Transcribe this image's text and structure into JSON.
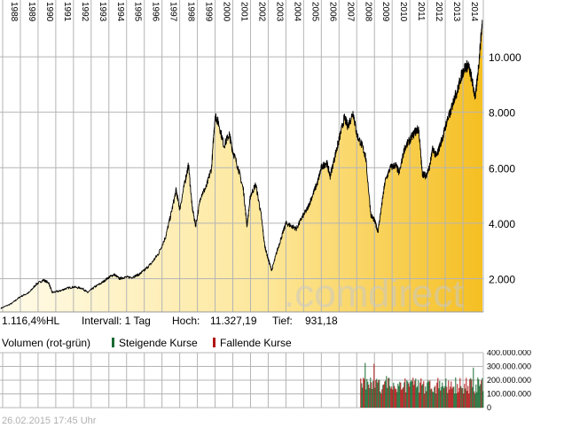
{
  "chart_data": [
    {
      "type": "area",
      "x_years": [
        "1988",
        "1989",
        "1990",
        "1991",
        "1992",
        "1993",
        "1994",
        "1995",
        "1996",
        "1997",
        "1998",
        "1999",
        "2000",
        "2001",
        "2002",
        "2003",
        "2004",
        "2005",
        "2006",
        "2007",
        "2008",
        "2009",
        "2010",
        "2011",
        "2012",
        "2013",
        "2014"
      ],
      "ylim": [
        800,
        11600
      ],
      "y_ticks": [
        2000,
        4000,
        6000,
        8000,
        10000
      ],
      "y_tick_labels": [
        "2.000",
        "4.000",
        "6.000",
        "8.000",
        "10.000"
      ],
      "grid": true,
      "series": [
        {
          "x": [
            1987.9,
            1988.5,
            1989.0,
            1989.5,
            1989.9,
            1990.3,
            1990.6,
            1990.8,
            1991.2,
            1991.6,
            1992.0,
            1992.5,
            1992.8,
            1993.2,
            1993.6,
            1994.0,
            1994.3,
            1994.6,
            1994.9,
            1995.3,
            1995.7,
            1996.0,
            1996.4,
            1996.8,
            1997.2,
            1997.5,
            1997.8,
            1998.0,
            1998.3,
            1998.5,
            1998.7,
            1998.9,
            1999.2,
            1999.5,
            1999.8,
            2000.0,
            2000.2,
            2000.5,
            2000.8,
            2001.0,
            2001.3,
            2001.6,
            2001.8,
            2002.0,
            2002.3,
            2002.6,
            2002.8,
            2003.0,
            2003.2,
            2003.5,
            2003.8,
            2004.0,
            2004.3,
            2004.6,
            2004.9,
            2005.2,
            2005.5,
            2005.8,
            2006.0,
            2006.3,
            2006.5,
            2006.8,
            2007.0,
            2007.3,
            2007.5,
            2007.8,
            2008.0,
            2008.3,
            2008.5,
            2008.8,
            2009.0,
            2009.2,
            2009.4,
            2009.6,
            2009.9,
            2010.2,
            2010.4,
            2010.7,
            2011.0,
            2011.3,
            2011.5,
            2011.7,
            2011.9,
            2012.1,
            2012.3,
            2012.5,
            2012.7,
            2012.9,
            2013.1,
            2013.3,
            2013.5,
            2013.7,
            2013.9,
            2014.1,
            2014.3,
            2014.5,
            2014.7,
            2014.9,
            2015.1
          ],
          "y": [
            931,
            1100,
            1350,
            1500,
            1800,
            1950,
            1850,
            1500,
            1550,
            1650,
            1700,
            1650,
            1500,
            1700,
            1850,
            2050,
            2150,
            2000,
            2050,
            2050,
            2150,
            2300,
            2550,
            2900,
            3500,
            4300,
            5200,
            4500,
            5500,
            6100,
            4600,
            3900,
            5000,
            5300,
            6000,
            7900,
            7600,
            6800,
            7200,
            6600,
            6000,
            5200,
            3900,
            5000,
            5400,
            4300,
            3200,
            2700,
            2300,
            3000,
            3600,
            4000,
            3900,
            3800,
            4200,
            4500,
            5000,
            5500,
            6000,
            6200,
            5700,
            6500,
            7000,
            7800,
            7500,
            8000,
            7200,
            6800,
            6400,
            4300,
            4100,
            3700,
            4600,
            5500,
            6000,
            6100,
            5800,
            6700,
            7000,
            7300,
            7400,
            5800,
            5700,
            6000,
            6700,
            6400,
            6800,
            7200,
            7700,
            8000,
            8500,
            8800,
            9300,
            9600,
            9700,
            9200,
            8500,
            9800,
            11327
          ]
        }
      ]
    },
    {
      "type": "bar",
      "ylim": [
        0,
        400000000
      ],
      "y_ticks": [
        0,
        100000000,
        200000000,
        300000000,
        400000000
      ],
      "y_tick_labels": [
        "0",
        "100.000.000",
        "200.000.000",
        "300.000.000",
        "400.000.000"
      ],
      "x_range": [
        2008.2,
        2015.15
      ],
      "series": [
        {
          "name": "Steigende Kurse",
          "color": "#1a6a32"
        },
        {
          "name": "Fallende Kurse",
          "color": "#b01515"
        }
      ]
    }
  ],
  "info": {
    "perf": "1.116,4%HL",
    "interval": "Intervall: 1 Tag",
    "high_label": "Hoch:",
    "high_value": "11.327,19",
    "low_label": "Tief:",
    "low_value": "931,18"
  },
  "legend": {
    "title": "Volumen (rot-grün)",
    "rising": "Steigende Kurse",
    "falling": "Fallende Kurse"
  },
  "watermark": {
    "part1": ".com",
    "part2": "direct"
  },
  "footer": "26.02.2015 17:45 Uhr",
  "colors": {
    "grid": "#b4b4b4",
    "fill_light": "#fff6d4",
    "fill_dark": "#f6c22a",
    "line": "#000000",
    "rising": "#1a6a32",
    "falling": "#b01515"
  }
}
